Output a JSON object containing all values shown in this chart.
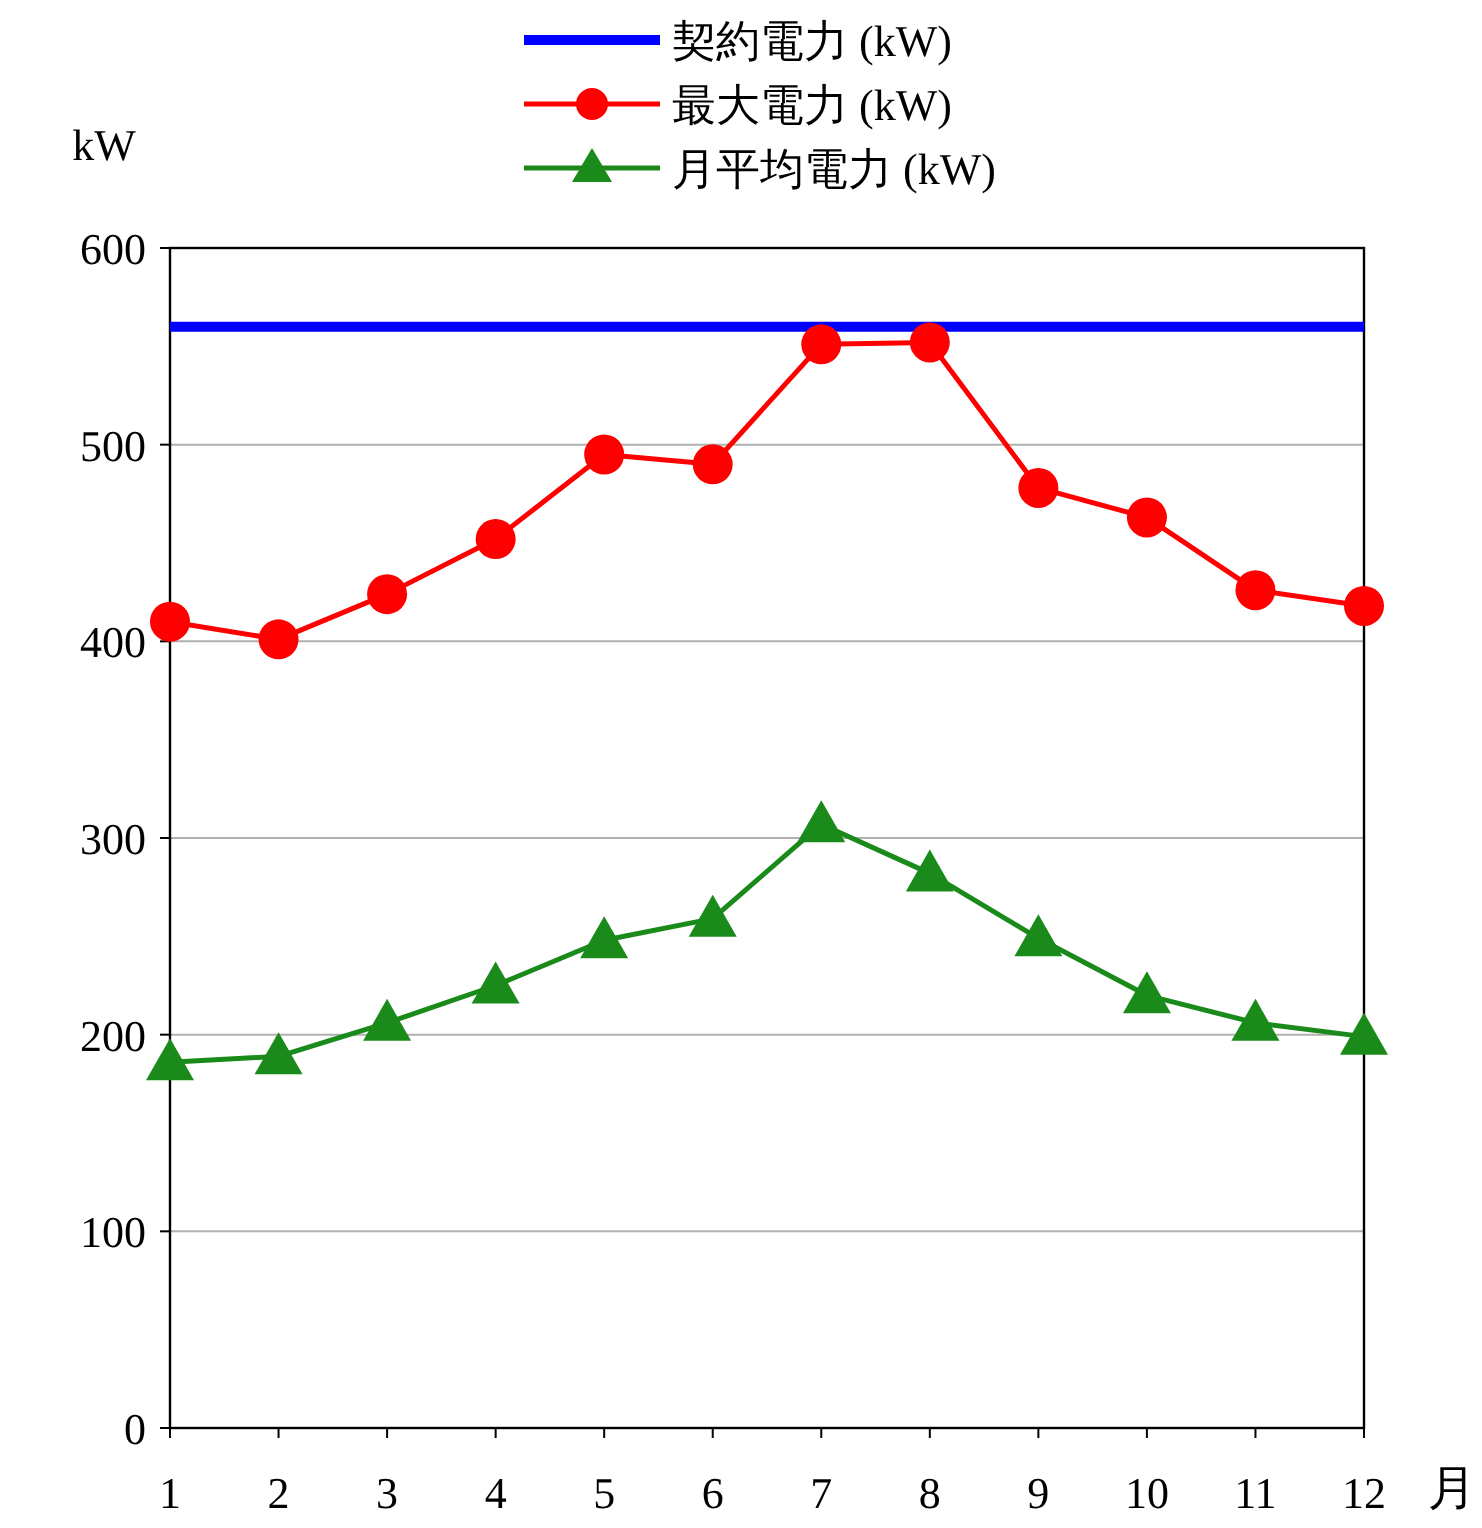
{
  "chart_data": {
    "type": "line",
    "ylabel": "kW",
    "xlabel": "月",
    "xlim": [
      1,
      12
    ],
    "xticks": [
      1,
      2,
      3,
      4,
      5,
      6,
      7,
      8,
      9,
      10,
      11,
      12
    ],
    "ylim": [
      0,
      600
    ],
    "yticks": [
      0,
      100,
      200,
      300,
      400,
      500,
      600
    ],
    "grid": "y",
    "legend": "top",
    "series": [
      {
        "name": "契約電力 (kW)",
        "color": "#0000ff",
        "marker": "none",
        "x": [
          1,
          12
        ],
        "values": [
          560,
          560
        ]
      },
      {
        "name": "最大電力 (kW)",
        "color": "#ff0000",
        "marker": "circle",
        "x": [
          1,
          2,
          3,
          4,
          5,
          6,
          7,
          8,
          9,
          10,
          11,
          12
        ],
        "values": [
          410,
          401,
          424,
          452,
          495,
          490,
          551,
          552,
          478,
          463,
          426,
          418
        ]
      },
      {
        "name": "月平均電力 (kW)",
        "color": "#1a8a1a",
        "marker": "triangle",
        "x": [
          1,
          2,
          3,
          4,
          5,
          6,
          7,
          8,
          9,
          10,
          11,
          12
        ],
        "values": [
          186,
          189,
          206,
          225,
          248,
          259,
          307,
          282,
          249,
          220,
          206,
          199
        ]
      }
    ]
  }
}
